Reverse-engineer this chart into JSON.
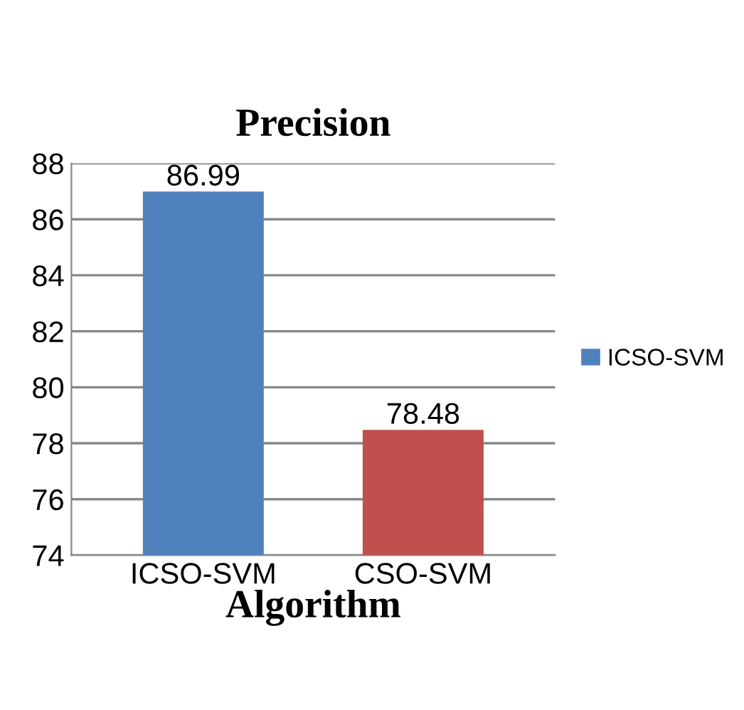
{
  "chart_data": {
    "type": "bar",
    "title": "Precision",
    "xlabel": "Algorithm",
    "categories": [
      "ICSO-SVM",
      "CSO-SVM"
    ],
    "series": [
      {
        "name": "ICSO-SVM",
        "color": "#4f81bd",
        "colors": [
          "#4f81bd",
          "#c0504d"
        ],
        "values": [
          86.99,
          78.48
        ]
      }
    ],
    "ylim": [
      74,
      88
    ],
    "yticks": [
      74,
      76,
      78,
      80,
      82,
      84,
      86,
      88
    ],
    "grid": "y",
    "legend": "right",
    "data_labels": true
  }
}
